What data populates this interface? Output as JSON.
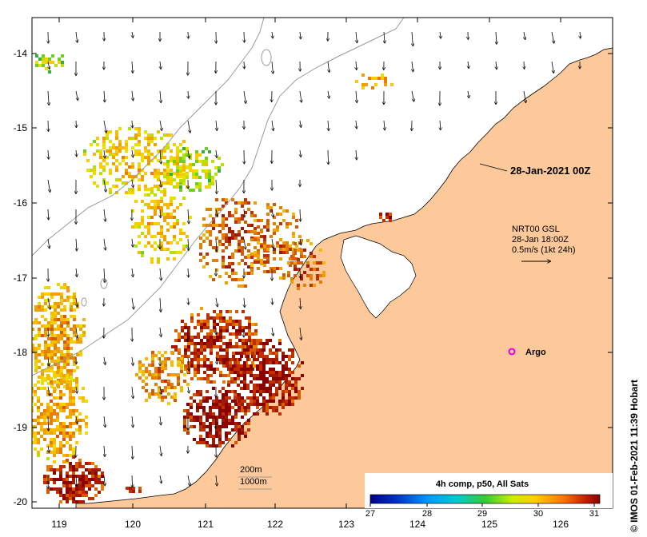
{
  "map": {
    "date_label": "28-Jan-2021 00Z",
    "current_info": {
      "line1": "NRT00 GSL",
      "line2": "28-Jan 18:00Z",
      "line3": "0.5m/s (1kt 24h)"
    },
    "argo_label": "Argo",
    "bathymetry_labels": [
      "200m",
      "1000m"
    ],
    "credit": "© IMOS 01-Feb-2021 11:39 Hobart",
    "x_ticks": [
      "119",
      "120",
      "121",
      "122",
      "123",
      "124",
      "125",
      "126"
    ],
    "y_ticks": [
      "-14",
      "-15",
      "-16",
      "-17",
      "-18",
      "-19",
      "-20"
    ],
    "colors": {
      "land": "#fdc99a",
      "argo": "#e000e0",
      "sst_low": "#00008b",
      "sst_high": "#8b0000"
    }
  },
  "colorbar": {
    "title": "4h comp, p50, All Sats",
    "ticks": [
      "27",
      "28",
      "29",
      "30",
      "31"
    ],
    "range": [
      27,
      31
    ]
  }
}
